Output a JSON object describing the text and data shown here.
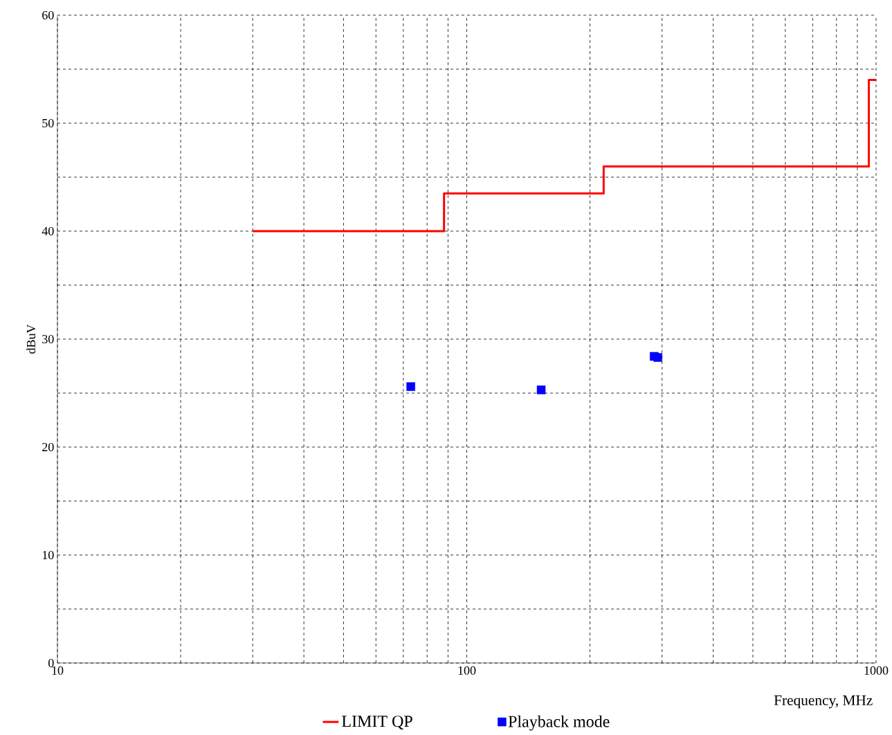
{
  "chart_data": {
    "type": "scatter",
    "xlabel": "Frequency, MHz",
    "ylabel": "dBuV",
    "log": "x",
    "grid": true,
    "legend": "bottom",
    "xlim": [
      10,
      1000
    ],
    "ylim": [
      0,
      60
    ],
    "xticks": [
      10,
      {
        "value": 20,
        "label": null
      },
      {
        "value": 30,
        "label": null
      },
      {
        "value": 40,
        "label": null
      },
      {
        "value": 50,
        "label": null
      },
      {
        "value": 60,
        "label": null
      },
      {
        "value": 70,
        "label": null
      },
      {
        "value": 80,
        "label": null
      },
      {
        "value": 90,
        "label": null
      },
      100,
      {
        "value": 200,
        "label": null
      },
      {
        "value": 300,
        "label": null
      },
      {
        "value": 400,
        "label": null
      },
      {
        "value": 500,
        "label": null
      },
      {
        "value": 600,
        "label": null
      },
      {
        "value": 700,
        "label": null
      },
      {
        "value": 800,
        "label": null
      },
      {
        "value": 900,
        "label": null
      },
      1000
    ],
    "yticks": [
      0,
      {
        "value": 5,
        "label": null
      },
      10,
      {
        "value": 15,
        "label": null
      },
      20,
      {
        "value": 25,
        "label": null
      },
      30,
      {
        "value": 35,
        "label": null
      },
      40,
      {
        "value": 45,
        "label": null
      },
      50,
      {
        "value": 55,
        "label": null
      },
      60
    ],
    "series": [
      {
        "name": "LIMIT QP",
        "type": "step",
        "color": "#ff0000",
        "marker": "none",
        "line_style": "solid",
        "x": [
          30,
          88,
          216,
          960,
          1000
        ],
        "values": [
          40,
          43.5,
          46,
          54,
          54
        ]
      },
      {
        "name": "Playback mode",
        "color": "#0000ff",
        "marker": "square",
        "x": [
          73,
          152,
          287,
          293
        ],
        "values": [
          25.6,
          25.3,
          28.4,
          28.3
        ]
      }
    ]
  }
}
